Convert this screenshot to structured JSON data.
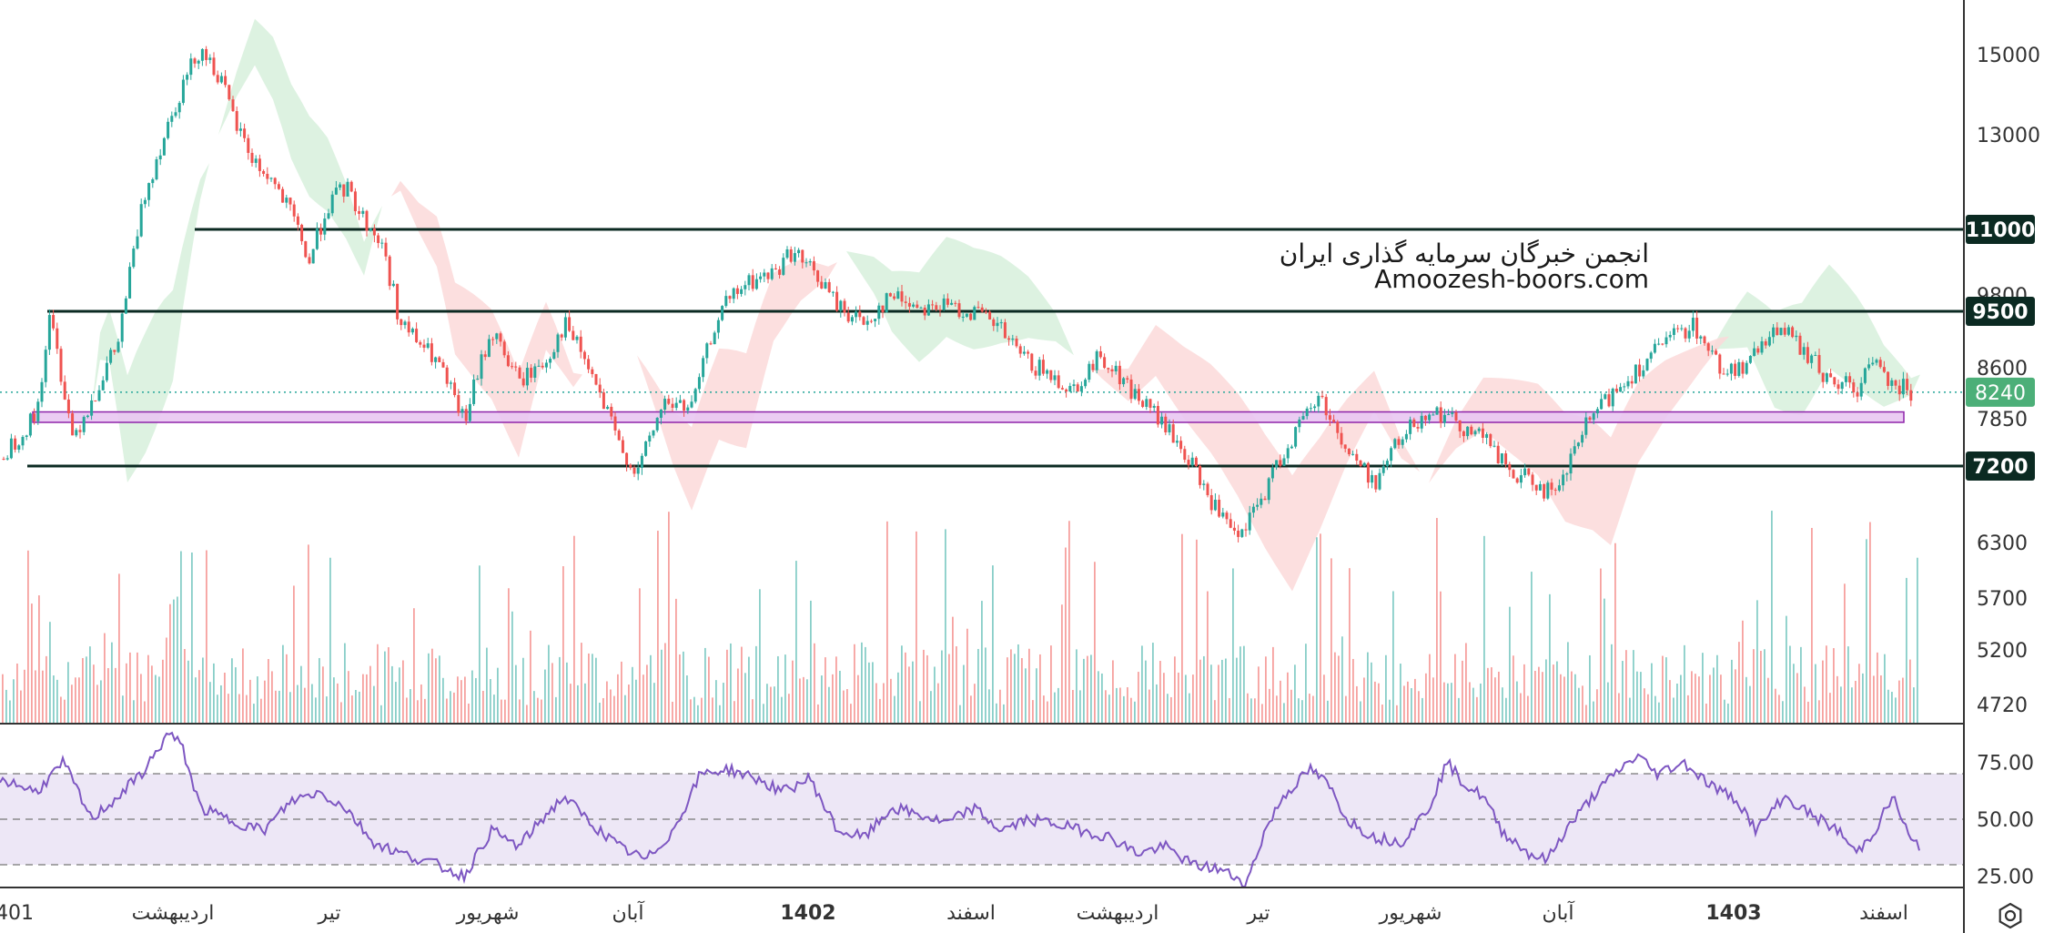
{
  "colors": {
    "up": "#26a69a",
    "down": "#ef5350",
    "level_line": "#0b2a22",
    "level_badge_bg": "#0b2a22",
    "current_badge_bg": "#4caf78",
    "zone_fill": "#e9c6f2",
    "zone_stroke": "#8e24aa",
    "cloud_bull": "#d7f0dc",
    "cloud_bear": "#fbd9d9",
    "rsi_line": "#7e57c2",
    "rsi_band": "#ede7f6",
    "axis_text": "#333333"
  },
  "watermark": {
    "line1": "انجمن خبرگان سرمایه گذاری ایران",
    "line2": "Amoozesh-boors.com"
  },
  "settings_icon": "gear-icon",
  "chart_data": [
    {
      "type": "candlestick",
      "price_axis_ticks": [
        15000,
        13000,
        9800,
        8600,
        7850,
        6300,
        5700,
        5200,
        4720
      ],
      "time_axis_labels": [
        "401",
        "اردیبهشت",
        "تیر",
        "شهریور",
        "آبان",
        "1402",
        "اسفند",
        "اردیبهشت",
        "تیر",
        "شهریور",
        "آبان",
        "1403",
        "اسفند"
      ],
      "bold_time_labels": [
        "1402",
        "1403"
      ],
      "horizontal_levels": [
        11000,
        9500,
        7200
      ],
      "current_price": 8240,
      "support_zone": [
        7800,
        7950
      ],
      "price_path": [
        [
          0,
          7300
        ],
        [
          40,
          7900
        ],
        [
          55,
          9400
        ],
        [
          80,
          7600
        ],
        [
          100,
          8100
        ],
        [
          130,
          9000
        ],
        [
          160,
          11800
        ],
        [
          200,
          14200
        ],
        [
          220,
          15200
        ],
        [
          240,
          14500
        ],
        [
          260,
          13200
        ],
        [
          280,
          12400
        ],
        [
          300,
          12000
        ],
        [
          320,
          11300
        ],
        [
          340,
          10400
        ],
        [
          360,
          11500
        ],
        [
          380,
          11900
        ],
        [
          400,
          11200
        ],
        [
          420,
          10700
        ],
        [
          440,
          9300
        ],
        [
          480,
          8700
        ],
        [
          510,
          7800
        ],
        [
          540,
          9200
        ],
        [
          570,
          8400
        ],
        [
          600,
          8700
        ],
        [
          620,
          9300
        ],
        [
          640,
          8800
        ],
        [
          680,
          7500
        ],
        [
          700,
          7100
        ],
        [
          730,
          8100
        ],
        [
          760,
          8000
        ],
        [
          790,
          9500
        ],
        [
          820,
          10000
        ],
        [
          850,
          10200
        ],
        [
          870,
          10600
        ],
        [
          900,
          10100
        ],
        [
          920,
          9600
        ],
        [
          950,
          9300
        ],
        [
          980,
          9800
        ],
        [
          1010,
          9600
        ],
        [
          1040,
          9600
        ],
        [
          1070,
          9500
        ],
        [
          1100,
          9200
        ],
        [
          1120,
          8800
        ],
        [
          1150,
          8500
        ],
        [
          1180,
          8300
        ],
        [
          1210,
          8800
        ],
        [
          1240,
          8300
        ],
        [
          1270,
          7900
        ],
        [
          1300,
          7400
        ],
        [
          1330,
          6800
        ],
        [
          1360,
          6300
        ],
        [
          1390,
          6900
        ],
        [
          1420,
          7600
        ],
        [
          1450,
          8200
        ],
        [
          1480,
          7400
        ],
        [
          1510,
          7000
        ],
        [
          1540,
          7600
        ],
        [
          1570,
          8000
        ],
        [
          1600,
          7800
        ],
        [
          1630,
          7600
        ],
        [
          1660,
          7100
        ],
        [
          1690,
          7000
        ],
        [
          1710,
          6800
        ],
        [
          1740,
          7700
        ],
        [
          1770,
          8200
        ],
        [
          1800,
          8600
        ],
        [
          1830,
          9000
        ],
        [
          1860,
          9300
        ],
        [
          1890,
          8600
        ],
        [
          1920,
          8600
        ],
        [
          1950,
          9300
        ],
        [
          1980,
          8900
        ],
        [
          2010,
          8400
        ],
        [
          2040,
          8300
        ],
        [
          2060,
          8700
        ],
        [
          2080,
          8400
        ],
        [
          2100,
          8240
        ]
      ],
      "cloud_bull_ranges": [
        [
          100,
          230
        ],
        [
          240,
          420
        ],
        [
          930,
          1180
        ],
        [
          1880,
          2110
        ]
      ],
      "cloud_bear_ranges": [
        [
          430,
          640
        ],
        [
          700,
          920
        ],
        [
          1200,
          1560
        ],
        [
          1570,
          1900
        ]
      ]
    },
    {
      "type": "bar",
      "name": "volume",
      "scale": "relative"
    },
    {
      "type": "line",
      "name": "RSI",
      "ticks": [
        75.0,
        50.0,
        25.0
      ],
      "band": [
        30,
        70
      ],
      "ylim": [
        20,
        90
      ],
      "points": [
        [
          0,
          68
        ],
        [
          40,
          62
        ],
        [
          70,
          75
        ],
        [
          100,
          50
        ],
        [
          130,
          60
        ],
        [
          160,
          72
        ],
        [
          185,
          88
        ],
        [
          200,
          82
        ],
        [
          220,
          55
        ],
        [
          250,
          50
        ],
        [
          290,
          45
        ],
        [
          320,
          58
        ],
        [
          350,
          62
        ],
        [
          380,
          55
        ],
        [
          410,
          40
        ],
        [
          440,
          35
        ],
        [
          480,
          30
        ],
        [
          510,
          25
        ],
        [
          540,
          45
        ],
        [
          570,
          38
        ],
        [
          600,
          52
        ],
        [
          620,
          60
        ],
        [
          650,
          48
        ],
        [
          680,
          38
        ],
        [
          710,
          32
        ],
        [
          740,
          45
        ],
        [
          770,
          70
        ],
        [
          800,
          72
        ],
        [
          830,
          68
        ],
        [
          860,
          62
        ],
        [
          890,
          68
        ],
        [
          920,
          45
        ],
        [
          950,
          42
        ],
        [
          980,
          55
        ],
        [
          1010,
          52
        ],
        [
          1040,
          48
        ],
        [
          1070,
          55
        ],
        [
          1100,
          45
        ],
        [
          1130,
          50
        ],
        [
          1160,
          48
        ],
        [
          1190,
          45
        ],
        [
          1220,
          42
        ],
        [
          1250,
          35
        ],
        [
          1280,
          38
        ],
        [
          1310,
          30
        ],
        [
          1340,
          28
        ],
        [
          1370,
          22
        ],
        [
          1390,
          45
        ],
        [
          1410,
          60
        ],
        [
          1440,
          72
        ],
        [
          1460,
          65
        ],
        [
          1480,
          50
        ],
        [
          1510,
          42
        ],
        [
          1540,
          40
        ],
        [
          1570,
          55
        ],
        [
          1590,
          75
        ],
        [
          1610,
          65
        ],
        [
          1630,
          60
        ],
        [
          1650,
          45
        ],
        [
          1680,
          35
        ],
        [
          1700,
          32
        ],
        [
          1720,
          45
        ],
        [
          1750,
          60
        ],
        [
          1780,
          72
        ],
        [
          1800,
          78
        ],
        [
          1820,
          70
        ],
        [
          1850,
          75
        ],
        [
          1880,
          65
        ],
        [
          1910,
          58
        ],
        [
          1930,
          45
        ],
        [
          1960,
          60
        ],
        [
          1990,
          52
        ],
        [
          2020,
          45
        ],
        [
          2040,
          35
        ],
        [
          2060,
          45
        ],
        [
          2080,
          60
        ],
        [
          2100,
          40
        ],
        [
          2110,
          38
        ]
      ]
    }
  ]
}
